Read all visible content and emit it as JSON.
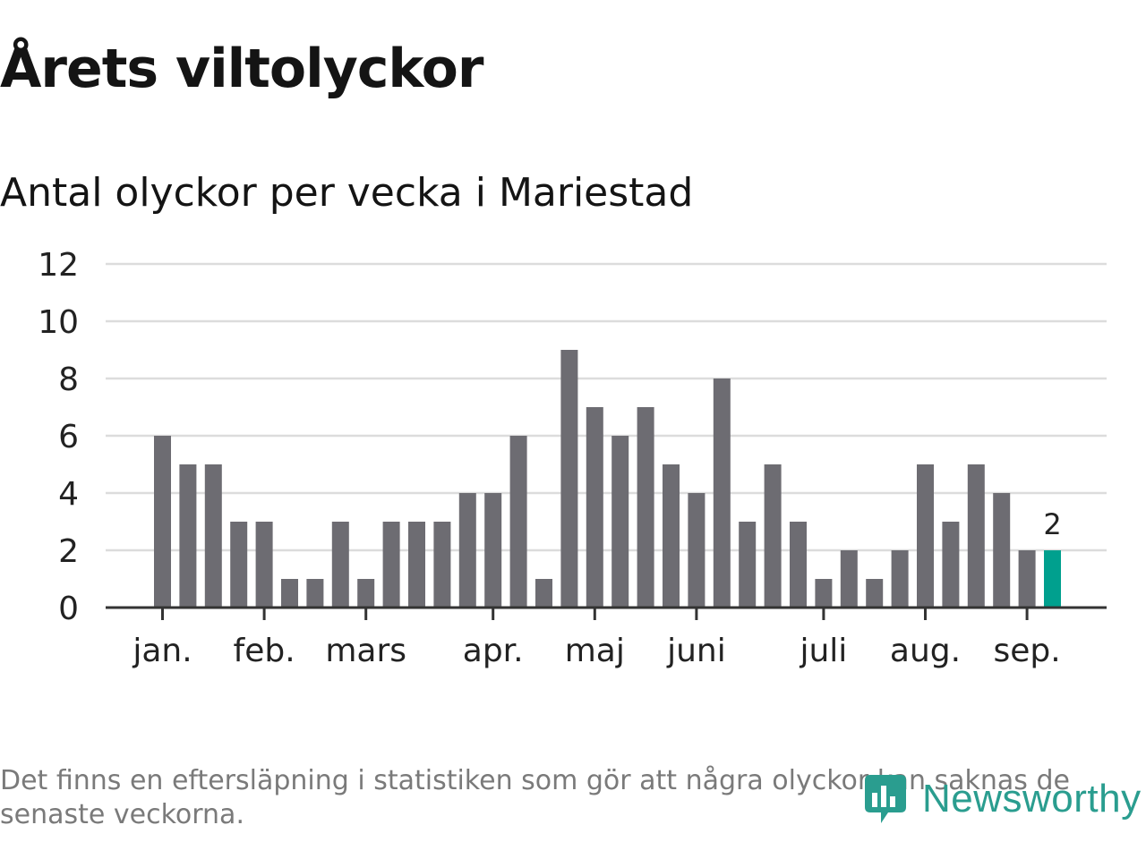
{
  "title": "Årets viltolyckor",
  "subtitle": "Antal olyckor per vecka i Mariestad",
  "chart_data": {
    "type": "bar",
    "title": "Årets viltolyckor",
    "subtitle": "Antal olyckor per vecka i Mariestad",
    "xlabel": "",
    "ylabel": "",
    "ylim": [
      0,
      12
    ],
    "yticks": [
      0,
      2,
      4,
      6,
      8,
      10,
      12
    ],
    "grid": true,
    "month_labels": [
      "jan.",
      "feb.",
      "mars",
      "apr.",
      "maj",
      "juni",
      "juli",
      "aug.",
      "sep."
    ],
    "month_start_week": [
      1,
      5,
      9,
      14,
      18,
      22,
      27,
      31,
      35
    ],
    "values": [
      6,
      5,
      5,
      3,
      3,
      1,
      1,
      3,
      1,
      3,
      3,
      3,
      4,
      4,
      6,
      1,
      9,
      7,
      6,
      7,
      5,
      4,
      8,
      3,
      5,
      3,
      1,
      2,
      1,
      2,
      5,
      3,
      5,
      4,
      2,
      2
    ],
    "highlight_last": true,
    "last_label": "2",
    "bar_color": "#6d6c72",
    "highlight_color": "#00a08e"
  },
  "footnote": "Det finns en eftersläpning i statistiken som gör att några olyckor kan saknas de senaste veckorna.",
  "logo": {
    "text": "Newsworthy",
    "color": "#2a9d8f"
  }
}
